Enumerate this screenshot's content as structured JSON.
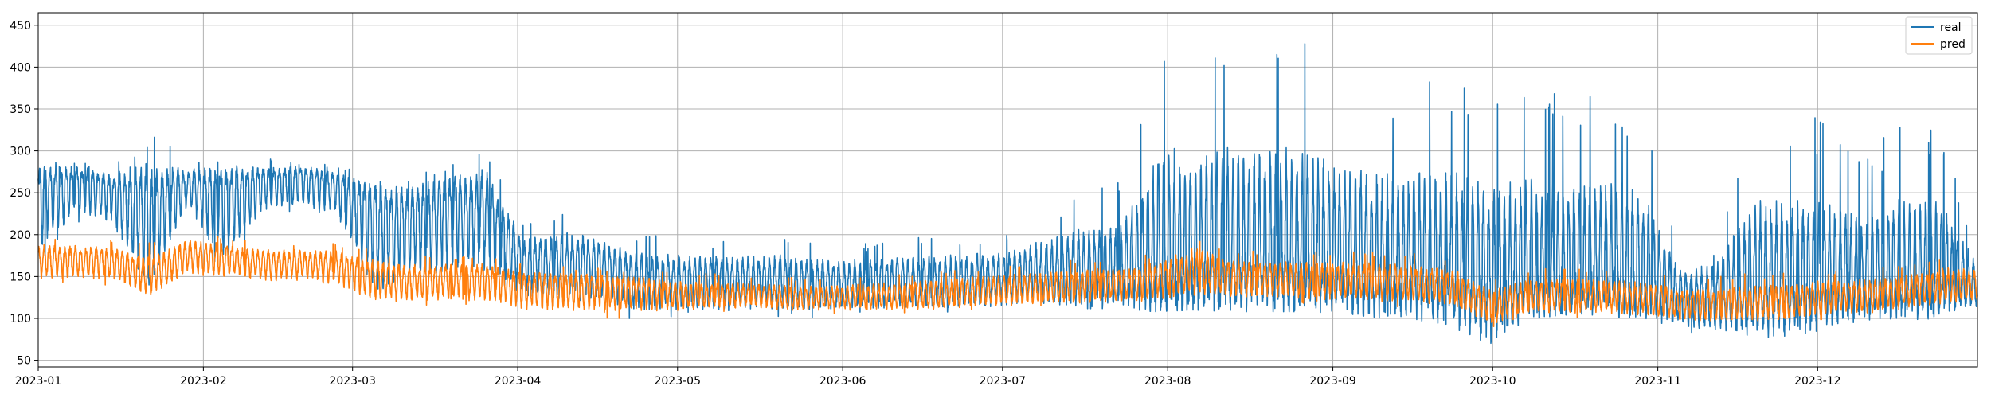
{
  "chart_data": {
    "type": "line",
    "title": "",
    "xlabel": "",
    "ylabel": "",
    "grid": true,
    "legend_position": "top-right",
    "x_range": [
      "2023-01-01",
      "2023-12-31"
    ],
    "ylim": [
      42,
      465
    ],
    "x_ticks": [
      {
        "date": "2023-01-01",
        "label": "2023-01"
      },
      {
        "date": "2023-02-01",
        "label": "2023-02"
      },
      {
        "date": "2023-03-01",
        "label": "2023-03"
      },
      {
        "date": "2023-04-01",
        "label": "2023-04"
      },
      {
        "date": "2023-05-01",
        "label": "2023-05"
      },
      {
        "date": "2023-06-01",
        "label": "2023-06"
      },
      {
        "date": "2023-07-01",
        "label": "2023-07"
      },
      {
        "date": "2023-08-01",
        "label": "2023-08"
      },
      {
        "date": "2023-09-01",
        "label": "2023-09"
      },
      {
        "date": "2023-10-01",
        "label": "2023-10"
      },
      {
        "date": "2023-11-01",
        "label": "2023-11"
      },
      {
        "date": "2023-12-01",
        "label": "2023-12"
      }
    ],
    "y_ticks": [
      50,
      100,
      150,
      200,
      250,
      300,
      350,
      400,
      450
    ],
    "series": [
      {
        "name": "real",
        "color": "#1f77b4",
        "x": [
          "2023-01-01",
          "2023-01-08",
          "2023-01-15",
          "2023-01-22",
          "2023-01-29",
          "2023-02-05",
          "2023-02-12",
          "2023-02-19",
          "2023-02-26",
          "2023-03-05",
          "2023-03-12",
          "2023-03-19",
          "2023-03-26",
          "2023-04-02",
          "2023-04-09",
          "2023-04-16",
          "2023-04-23",
          "2023-04-30",
          "2023-05-07",
          "2023-05-14",
          "2023-05-21",
          "2023-05-28",
          "2023-06-04",
          "2023-06-11",
          "2023-06-18",
          "2023-06-25",
          "2023-07-02",
          "2023-07-09",
          "2023-07-16",
          "2023-07-23",
          "2023-07-30",
          "2023-08-06",
          "2023-08-13",
          "2023-08-20",
          "2023-08-27",
          "2023-09-03",
          "2023-09-10",
          "2023-09-17",
          "2023-09-24",
          "2023-10-01",
          "2023-10-08",
          "2023-10-15",
          "2023-10-22",
          "2023-10-29",
          "2023-11-05",
          "2023-11-12",
          "2023-11-19",
          "2023-11-26",
          "2023-12-03",
          "2023-12-10",
          "2023-12-17",
          "2023-12-24",
          "2023-12-31"
        ],
        "values": [
          262,
          268,
          255,
          235,
          262,
          258,
          265,
          270,
          262,
          230,
          225,
          238,
          236,
          168,
          172,
          168,
          150,
          148,
          147,
          146,
          148,
          144,
          144,
          147,
          146,
          148,
          150,
          155,
          152,
          152,
          156,
          155,
          160,
          160,
          158,
          158,
          152,
          155,
          148,
          135,
          150,
          148,
          150,
          145,
          130,
          132,
          132,
          138,
          142,
          140,
          142,
          142,
          142
        ],
        "max": [
          285,
          288,
          285,
          325,
          290,
          290,
          292,
          288,
          285,
          282,
          275,
          285,
          310,
          215,
          225,
          222,
          200,
          198,
          195,
          198,
          198,
          192,
          190,
          196,
          198,
          202,
          200,
          230,
          260,
          270,
          445,
          445,
          440,
          440,
          444,
          400,
          395,
          395,
          398,
          382,
          380,
          372,
          375,
          362,
          180,
          190,
          345,
          340,
          340,
          300,
          340,
          340,
          180
        ],
        "min": [
          145,
          210,
          200,
          95,
          225,
          130,
          210,
          222,
          212,
          90,
          122,
          125,
          128,
          115,
          102,
          110,
          98,
          98,
          100,
          100,
          100,
          100,
          102,
          102,
          102,
          105,
          105,
          110,
          108,
          110,
          108,
          110,
          108,
          108,
          108,
          106,
          100,
          98,
          88,
          60,
          100,
          102,
          102,
          100,
          80,
          70,
          75,
          75,
          85,
          95,
          98,
          100,
          100
        ]
      },
      {
        "name": "pred",
        "color": "#ff7f0e",
        "x": [
          "2023-01-01",
          "2023-01-08",
          "2023-01-15",
          "2023-01-22",
          "2023-01-29",
          "2023-02-05",
          "2023-02-12",
          "2023-02-19",
          "2023-02-26",
          "2023-03-05",
          "2023-03-12",
          "2023-03-19",
          "2023-03-26",
          "2023-04-02",
          "2023-04-09",
          "2023-04-16",
          "2023-04-23",
          "2023-04-30",
          "2023-05-07",
          "2023-05-14",
          "2023-05-21",
          "2023-05-28",
          "2023-06-04",
          "2023-06-11",
          "2023-06-18",
          "2023-06-25",
          "2023-07-02",
          "2023-07-09",
          "2023-07-16",
          "2023-07-23",
          "2023-07-30",
          "2023-08-06",
          "2023-08-13",
          "2023-08-20",
          "2023-08-27",
          "2023-09-03",
          "2023-09-10",
          "2023-09-17",
          "2023-09-24",
          "2023-10-01",
          "2023-10-08",
          "2023-10-15",
          "2023-10-22",
          "2023-10-29",
          "2023-11-05",
          "2023-11-12",
          "2023-11-19",
          "2023-11-26",
          "2023-12-03",
          "2023-12-10",
          "2023-12-17",
          "2023-12-24",
          "2023-12-31"
        ],
        "values": [
          172,
          172,
          170,
          152,
          178,
          175,
          168,
          168,
          166,
          152,
          148,
          150,
          150,
          140,
          140,
          138,
          136,
          130,
          128,
          128,
          126,
          126,
          126,
          128,
          130,
          133,
          135,
          138,
          140,
          142,
          148,
          160,
          152,
          150,
          148,
          148,
          146,
          145,
          138,
          115,
          128,
          130,
          128,
          125,
          120,
          118,
          120,
          122,
          128,
          128,
          132,
          140,
          142
        ],
        "max": [
          200,
          198,
          196,
          190,
          205,
          200,
          192,
          192,
          190,
          182,
          175,
          175,
          175,
          165,
          165,
          162,
          160,
          155,
          155,
          155,
          150,
          150,
          152,
          155,
          158,
          162,
          165,
          170,
          172,
          175,
          180,
          205,
          185,
          182,
          182,
          182,
          180,
          178,
          172,
          150,
          162,
          162,
          160,
          158,
          150,
          150,
          155,
          155,
          160,
          160,
          165,
          178,
          170
        ],
        "min": [
          138,
          140,
          138,
          120,
          145,
          140,
          138,
          138,
          132,
          110,
          110,
          112,
          110,
          100,
          98,
          100,
          100,
          102,
          108,
          108,
          105,
          105,
          105,
          105,
          105,
          108,
          110,
          112,
          112,
          112,
          115,
          118,
          118,
          118,
          115,
          115,
          112,
          112,
          108,
          85,
          100,
          100,
          100,
          98,
          92,
          90,
          90,
          92,
          100,
          100,
          105,
          110,
          115
        ]
      }
    ]
  }
}
